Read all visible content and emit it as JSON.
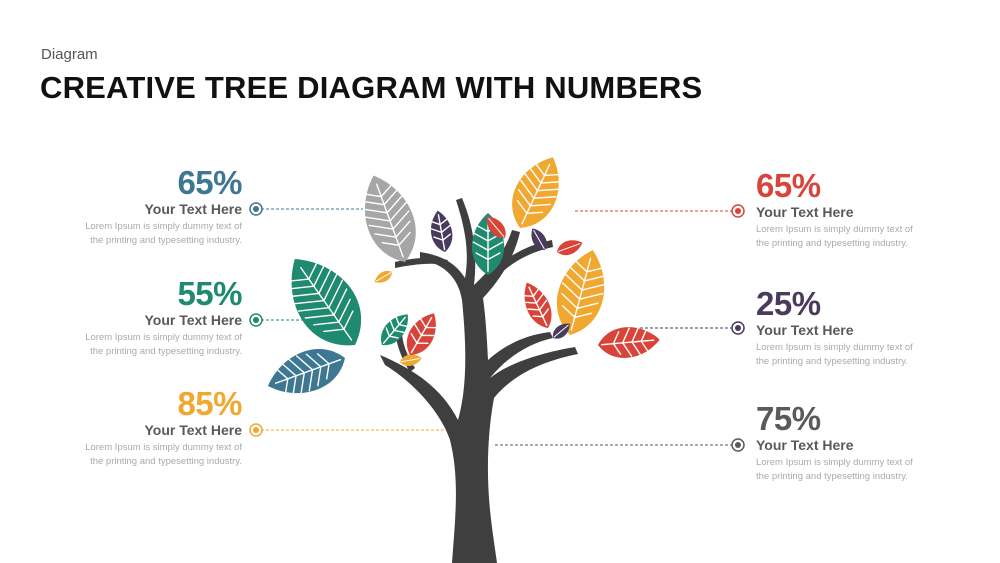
{
  "header": {
    "category": "Diagram",
    "title": "CREATIVE TREE DIAGRAM WITH NUMBERS"
  },
  "items": [
    {
      "side": "left",
      "percent": "65%",
      "heading": "Your Text Here",
      "desc_line1": "Lorem Ipsum is simply dummy text of",
      "desc_line2": "the printing and typesetting industry.",
      "color": "#3E7791"
    },
    {
      "side": "left",
      "percent": "55%",
      "heading": "Your Text Here",
      "desc_line1": "Lorem Ipsum is simply dummy text of",
      "desc_line2": "the printing and typesetting industry.",
      "color": "#1F8A70"
    },
    {
      "side": "left",
      "percent": "85%",
      "heading": "Your Text Here",
      "desc_line1": "Lorem Ipsum is simply dummy text of",
      "desc_line2": "the printing and typesetting industry.",
      "color": "#F0A830"
    },
    {
      "side": "right",
      "percent": "65%",
      "heading": "Your Text Here",
      "desc_line1": "Lorem Ipsum is simply dummy text of",
      "desc_line2": "the printing and typesetting industry.",
      "color": "#D9443A"
    },
    {
      "side": "right",
      "percent": "25%",
      "heading": "Your Text Here",
      "desc_line1": "Lorem Ipsum is simply dummy text of",
      "desc_line2": "the printing and typesetting industry.",
      "color": "#4A3B5C"
    },
    {
      "side": "right",
      "percent": "75%",
      "heading": "Your Text Here",
      "desc_line1": "Lorem Ipsum is simply dummy text of",
      "desc_line2": "the printing and typesetting industry.",
      "color": "#5A5A5A"
    }
  ],
  "palette": {
    "trunk": "#3F3F3F",
    "teal": "#1F8A70",
    "blue": "#3E7791",
    "orange": "#F0A830",
    "red": "#D9443A",
    "purple": "#4A3B5C",
    "gray": "#A6A6A6"
  }
}
